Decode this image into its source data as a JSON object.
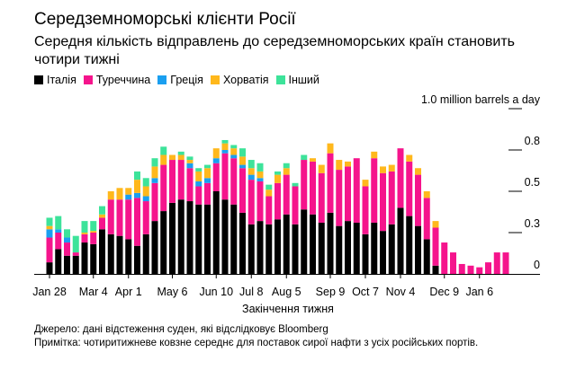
{
  "title": "Середземноморські клієнти Росії",
  "subtitle": "Середня кількість відправлень до середземноморських країн становить чотири тижні",
  "source": "Джерело: дані відстеження суден, які відслідковує Bloomberg",
  "note": "Примітка: чотиритижневе ковзне середнє для поставок сирої нафти з усіх російських портів.",
  "chart_data": {
    "type": "bar",
    "stacked": true,
    "title": "Середземноморські клієнти Росії",
    "xlabel": "Закінчення тижня",
    "ylabel": "million barrels a day",
    "ylim": [
      0,
      1.0
    ],
    "yticks": [
      {
        "value": 0,
        "label": "0"
      },
      {
        "value": 0.25,
        "label": "0.3"
      },
      {
        "value": 0.5,
        "label": "0.5"
      },
      {
        "value": 0.75,
        "label": "0.8"
      },
      {
        "value": 1.0,
        "label": "1.0 million barrels a day"
      }
    ],
    "xticks": [
      {
        "index": 0,
        "label": "Jan 28"
      },
      {
        "index": 5,
        "label": "Mar 4"
      },
      {
        "index": 9,
        "label": "Apr 1"
      },
      {
        "index": 14,
        "label": "May 6"
      },
      {
        "index": 19,
        "label": "Jun 10"
      },
      {
        "index": 23,
        "label": "Jul 8"
      },
      {
        "index": 27,
        "label": "Aug 5"
      },
      {
        "index": 32,
        "label": "Sep 9"
      },
      {
        "index": 36,
        "label": "Oct 7"
      },
      {
        "index": 40,
        "label": "Nov 4"
      },
      {
        "index": 45,
        "label": "Dec 9"
      },
      {
        "index": 49,
        "label": "Jan 6"
      }
    ],
    "legend_position": "top-left",
    "series": [
      {
        "name": "Італія",
        "color": "#000000",
        "values": [
          0.07,
          0.15,
          0.11,
          0.11,
          0.19,
          0.18,
          0.27,
          0.24,
          0.23,
          0.21,
          0.17,
          0.24,
          0.32,
          0.38,
          0.43,
          0.45,
          0.44,
          0.42,
          0.42,
          0.5,
          0.45,
          0.42,
          0.37,
          0.3,
          0.32,
          0.3,
          0.33,
          0.36,
          0.3,
          0.39,
          0.36,
          0.31,
          0.37,
          0.29,
          0.32,
          0.31,
          0.24,
          0.31,
          0.26,
          0.3,
          0.4,
          0.35,
          0.29,
          0.21,
          0.05,
          0,
          0,
          0,
          0,
          0,
          0,
          0,
          0
        ]
      },
      {
        "name": "Туреччина",
        "color": "#f5148c",
        "values": [
          0.15,
          0.1,
          0.08,
          0.02,
          0.05,
          0.07,
          0.07,
          0.21,
          0.22,
          0.24,
          0.29,
          0.2,
          0.23,
          0.28,
          0.26,
          0.24,
          0.2,
          0.11,
          0.13,
          0.17,
          0.28,
          0.28,
          0.27,
          0.27,
          0.24,
          0.17,
          0.22,
          0.24,
          0.23,
          0.3,
          0.32,
          0.3,
          0.36,
          0.34,
          0.33,
          0.39,
          0.29,
          0.39,
          0.35,
          0.32,
          0.36,
          0.33,
          0.31,
          0.25,
          0.23,
          0.19,
          0.13,
          0.06,
          0.05,
          0.04,
          0.07,
          0.13,
          0.13
        ]
      },
      {
        "name": "Греція",
        "color": "#1a9ff0",
        "values": [
          0.05,
          0.02,
          0.03,
          0,
          0,
          0,
          0,
          0,
          0,
          0.03,
          0.03,
          0.03,
          0.03,
          0,
          0,
          0,
          0.03,
          0.03,
          0.03,
          0.03,
          0.02,
          0.02,
          0.02,
          0.03,
          0.02,
          0,
          0,
          0,
          0,
          0,
          0,
          0,
          0,
          0,
          0,
          0,
          0,
          0,
          0,
          0,
          0,
          0,
          0,
          0,
          0,
          0,
          0,
          0,
          0,
          0,
          0,
          0,
          0
        ]
      },
      {
        "name": "Хорватія",
        "color": "#ffb81c",
        "values": [
          0.02,
          0,
          0,
          0,
          0.01,
          0.01,
          0.02,
          0.05,
          0.07,
          0.04,
          0.08,
          0.06,
          0.07,
          0.06,
          0.03,
          0.03,
          0.02,
          0.06,
          0.06,
          0.06,
          0.04,
          0.04,
          0.05,
          0.04,
          0.04,
          0.04,
          0.05,
          0.04,
          0,
          0,
          0.02,
          0.05,
          0.06,
          0.06,
          0.03,
          0,
          0.04,
          0.04,
          0.04,
          0.04,
          0,
          0.04,
          0.04,
          0.04,
          0.04,
          0,
          0,
          0,
          0,
          0,
          0,
          0,
          0
        ]
      },
      {
        "name": "Інший",
        "color": "#3de39a",
        "values": [
          0.05,
          0.08,
          0.05,
          0.1,
          0.07,
          0.06,
          0.05,
          0,
          0,
          0,
          0.05,
          0.05,
          0.05,
          0.05,
          0,
          0.02,
          0.02,
          0.02,
          0.02,
          0,
          0.02,
          0.02,
          0.05,
          0.05,
          0.05,
          0.03,
          0.02,
          0.03,
          0.02,
          0.03,
          0,
          0,
          0,
          0,
          0,
          0,
          0,
          0,
          0,
          0,
          0,
          0,
          0,
          0,
          0,
          0,
          0,
          0,
          0,
          0,
          0,
          0,
          0
        ]
      }
    ]
  }
}
